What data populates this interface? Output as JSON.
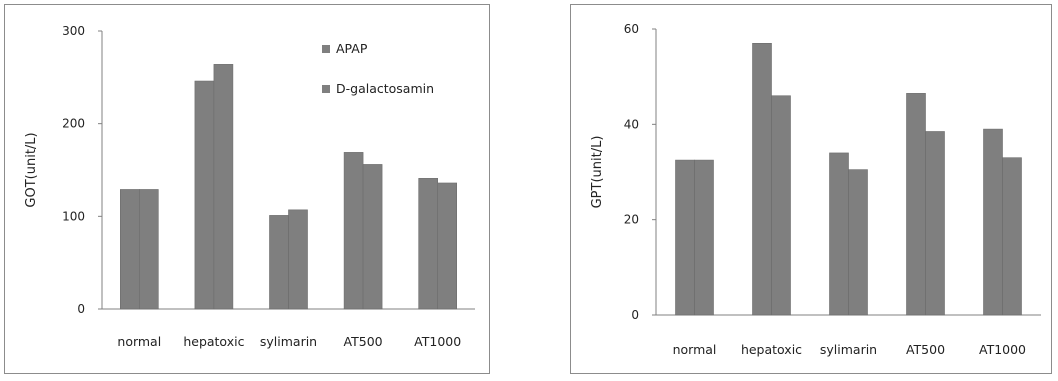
{
  "chart_data": [
    {
      "type": "bar",
      "categories": [
        "normal",
        "hepatoxic",
        "sylimarin",
        "AT500",
        "AT1000"
      ],
      "series": [
        {
          "name": "APAP",
          "values": [
            129,
            246,
            101,
            169,
            141
          ]
        },
        {
          "name": "D-galactosamin",
          "values": [
            129,
            264,
            107,
            156,
            136
          ]
        }
      ],
      "ylabel": "GOT(unit/L)",
      "xlabel": "",
      "ylim": [
        0,
        300
      ],
      "yticks": [
        "0",
        "100",
        "200",
        "300"
      ],
      "grid": false,
      "legend": "top-right"
    },
    {
      "type": "bar",
      "categories": [
        "normal",
        "hepatoxic",
        "sylimarin",
        "AT500",
        "AT1000"
      ],
      "series": [
        {
          "values": [
            32.5,
            57,
            34,
            46.5,
            39
          ]
        },
        {
          "values": [
            32.5,
            46,
            30.5,
            38.5,
            33
          ]
        }
      ],
      "ylabel": "GPT(unit/L)",
      "xlabel": "",
      "ylim": [
        0,
        60
      ],
      "yticks": [
        "0",
        "20",
        "40",
        "60"
      ],
      "grid": false
    }
  ],
  "colors": {
    "bar": "#7f7f7f",
    "bar_edge": "#6c6c6c",
    "axis": "#808080",
    "frame": "#8c8c8c"
  }
}
